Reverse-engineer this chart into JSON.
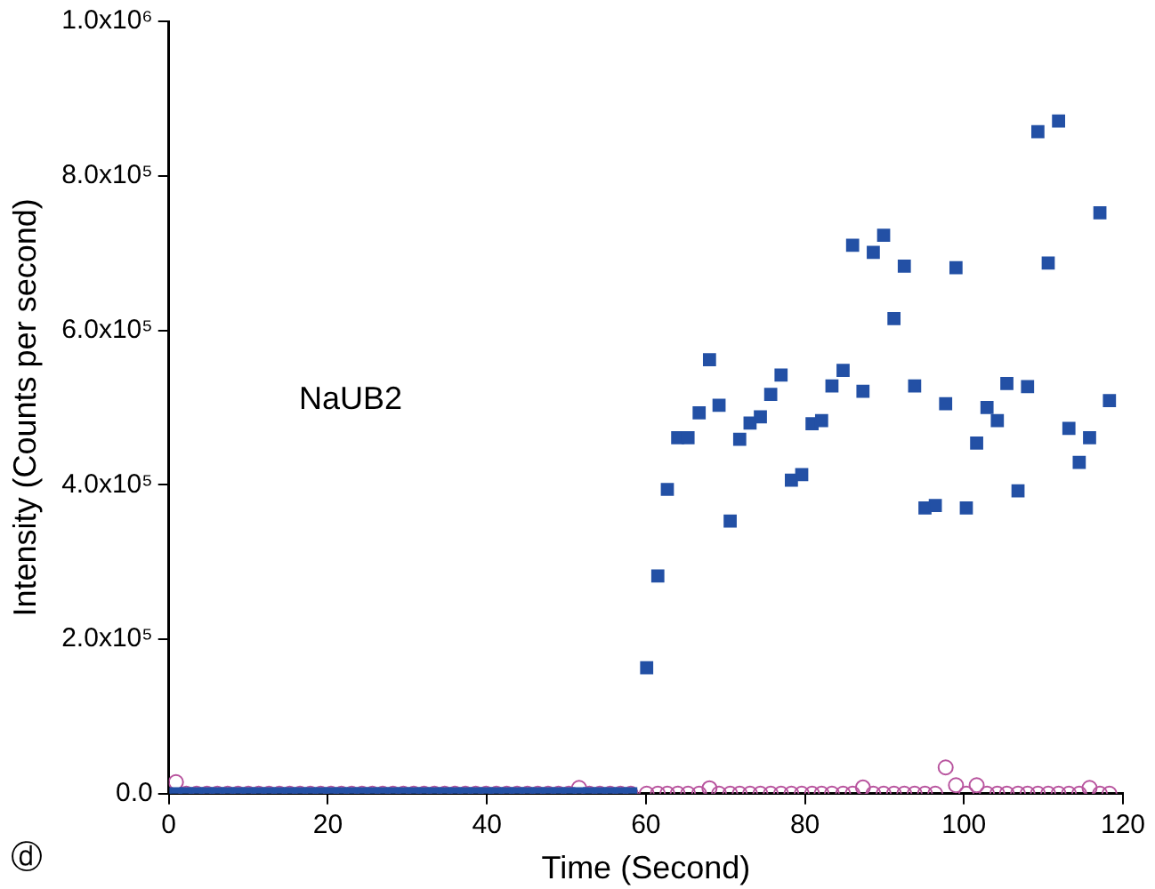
{
  "chart_data": {
    "type": "scatter",
    "xlabel": "Time (Second)",
    "ylabel": "Intensity (Counts per second)",
    "xlim": [
      0,
      120
    ],
    "xticks": [
      0,
      20,
      40,
      60,
      80,
      100,
      120
    ],
    "ylim": [
      0,
      1000000
    ],
    "yticks": [
      {
        "value": 0,
        "label": "0.0"
      },
      {
        "value": 200000,
        "label": "2.0x10⁵"
      },
      {
        "value": 400000,
        "label": "4.0x10⁵"
      },
      {
        "value": 600000,
        "label": "6.0x10⁵"
      },
      {
        "value": 800000,
        "label": "8.0x10⁵"
      },
      {
        "value": 1000000,
        "label": "1.0x10⁶"
      }
    ],
    "grid": false,
    "legend": false,
    "annotations": [
      "NaUB2",
      "ⓓ"
    ],
    "series": [
      {
        "color": "#2350a5",
        "marker": "square",
        "x": [
          0.9,
          2.2,
          3.5,
          4.8,
          6.1,
          7.4,
          8.7,
          10.0,
          11.3,
          12.6,
          13.9,
          15.2,
          16.5,
          17.8,
          19.1,
          20.4,
          21.7,
          23.0,
          24.3,
          25.6,
          26.9,
          28.2,
          29.5,
          30.8,
          32.1,
          33.4,
          34.7,
          36.0,
          37.3,
          38.6,
          39.9,
          41.2,
          42.5,
          43.8,
          45.1,
          46.4,
          47.7,
          49.0,
          50.3,
          51.6,
          52.9,
          54.2,
          55.5,
          56.8,
          58.1,
          60.1,
          61.5,
          62.7,
          64.0,
          65.3,
          66.7,
          68.0,
          69.2,
          70.6,
          71.8,
          73.1,
          74.4,
          75.7,
          77.0,
          78.3,
          79.6,
          80.9,
          82.1,
          83.4,
          84.8,
          86.0,
          87.3,
          88.6,
          89.9,
          91.2,
          92.5,
          93.8,
          95.1,
          96.4,
          97.7,
          99.0,
          100.3,
          101.6,
          102.9,
          104.2,
          105.4,
          106.8,
          108.0,
          109.3,
          110.6,
          111.9,
          113.2,
          114.5,
          115.8,
          117.1,
          118.3
        ],
        "values": [
          0,
          0,
          0,
          0,
          0,
          0,
          0,
          0,
          0,
          0,
          0,
          0,
          0,
          0,
          0,
          0,
          0,
          0,
          0,
          0,
          0,
          0,
          0,
          0,
          0,
          0,
          0,
          0,
          0,
          0,
          0,
          0,
          0,
          0,
          0,
          0,
          0,
          0,
          0,
          0,
          0,
          0,
          0,
          0,
          0,
          163000,
          282000,
          394000,
          461000,
          461000,
          493000,
          562000,
          503000,
          353000,
          459000,
          480000,
          488000,
          517000,
          542000,
          406000,
          413000,
          479000,
          483000,
          528000,
          548000,
          710000,
          521000,
          701000,
          723000,
          615000,
          683000,
          528000,
          370000,
          373000,
          505000,
          681000,
          370000,
          454000,
          500000,
          483000,
          531000,
          392000,
          527000,
          857000,
          687000,
          871000,
          473000,
          429000,
          461000,
          752000,
          509000
        ]
      },
      {
        "color": "#b8549e",
        "marker": "circle",
        "x": [
          0.9,
          2.2,
          3.5,
          4.8,
          6.1,
          7.4,
          8.7,
          10.0,
          11.3,
          12.6,
          13.9,
          15.2,
          16.5,
          17.8,
          19.1,
          20.4,
          21.7,
          23.0,
          24.3,
          25.6,
          26.9,
          28.2,
          29.5,
          30.8,
          32.1,
          33.4,
          34.7,
          36.0,
          37.3,
          38.6,
          39.9,
          41.2,
          42.5,
          43.8,
          45.1,
          46.4,
          47.7,
          49.0,
          50.3,
          51.6,
          52.9,
          54.2,
          55.5,
          56.8,
          58.1,
          60.1,
          61.5,
          62.7,
          64.0,
          65.3,
          66.7,
          68.0,
          69.2,
          70.6,
          71.8,
          73.1,
          74.4,
          75.7,
          77.0,
          78.3,
          79.6,
          80.9,
          82.1,
          83.4,
          84.8,
          86.0,
          87.3,
          88.6,
          89.9,
          91.2,
          92.5,
          93.8,
          95.1,
          96.4,
          97.7,
          99.0,
          100.3,
          101.6,
          102.9,
          104.2,
          105.4,
          106.8,
          108.0,
          109.3,
          110.6,
          111.9,
          113.2,
          114.5,
          115.8,
          117.1,
          118.3
        ],
        "values": [
          15000,
          0,
          0,
          0,
          0,
          0,
          0,
          0,
          0,
          0,
          0,
          0,
          0,
          0,
          0,
          0,
          0,
          0,
          0,
          0,
          0,
          0,
          0,
          0,
          0,
          0,
          0,
          0,
          0,
          0,
          0,
          0,
          0,
          0,
          0,
          0,
          0,
          0,
          0,
          7500,
          0,
          0,
          0,
          0,
          0,
          0,
          0,
          0,
          0,
          0,
          0,
          7000,
          0,
          0,
          0,
          0,
          0,
          0,
          0,
          0,
          0,
          0,
          0,
          0,
          0,
          0,
          8000,
          0,
          0,
          0,
          0,
          0,
          0,
          0,
          34000,
          11000,
          0,
          11000,
          0,
          0,
          0,
          0,
          0,
          0,
          0,
          0,
          0,
          0,
          7500,
          0,
          0
        ]
      }
    ]
  }
}
